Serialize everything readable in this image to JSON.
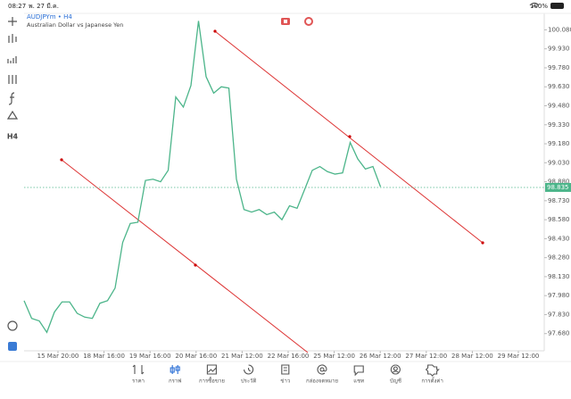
{
  "status_bar": {
    "time": "08:27",
    "date": "พ. 27 มี.ค.",
    "battery": "100%"
  },
  "header": {
    "symbol": "AUDJPYm • H4",
    "description": "Australian Dollar vs Japanese Yen"
  },
  "toolbar": {
    "timeframe": "H4"
  },
  "chart_data": {
    "type": "line",
    "color": "#4cb58a",
    "values": [
      97.94,
      97.8,
      97.78,
      97.69,
      97.85,
      97.93,
      97.93,
      97.84,
      97.81,
      97.8,
      97.92,
      97.94,
      98.04,
      98.4,
      98.55,
      98.56,
      98.89,
      98.9,
      98.88,
      98.97,
      99.55,
      99.47,
      99.64,
      100.15,
      99.71,
      99.58,
      99.63,
      99.62,
      98.9,
      98.66,
      98.64,
      98.66,
      98.62,
      98.64,
      98.58,
      98.69,
      98.67,
      98.82,
      98.97,
      99.0,
      98.96,
      98.94,
      98.95,
      99.19,
      99.06,
      98.98,
      99.0,
      98.84
    ],
    "current_price": 98.835,
    "ylim": [
      97.53,
      100.21
    ],
    "yticks": [
      {
        "value": 100.08,
        "label": "100.080"
      },
      {
        "value": 99.93,
        "label": "99.930"
      },
      {
        "value": 99.78,
        "label": "99.780"
      },
      {
        "value": 99.63,
        "label": "99.630"
      },
      {
        "value": 99.48,
        "label": "99.480"
      },
      {
        "value": 99.33,
        "label": "99.330"
      },
      {
        "value": 99.18,
        "label": "99.180"
      },
      {
        "value": 99.03,
        "label": "99.030"
      },
      {
        "value": 98.88,
        "label": "98.880"
      },
      {
        "value": 98.73,
        "label": "98.730"
      },
      {
        "value": 98.58,
        "label": "98.580"
      },
      {
        "value": 98.43,
        "label": "98.430"
      },
      {
        "value": 98.28,
        "label": "98.280"
      },
      {
        "value": 98.13,
        "label": "98.130"
      },
      {
        "value": 97.98,
        "label": "97.980"
      },
      {
        "value": 97.83,
        "label": "97.830"
      },
      {
        "value": 97.68,
        "label": "97.680"
      }
    ],
    "x_labels": [
      "15 Mar 20:00",
      "18 Mar 16:00",
      "19 Mar 16:00",
      "20 Mar 16:00",
      "21 Mar 12:00",
      "22 Mar 16:00",
      "25 Mar 12:00",
      "26 Mar 12:00",
      "27 Mar 12:00",
      "28 Mar 12:00",
      "29 Mar 12:00"
    ]
  },
  "tabs": [
    "ราคา",
    "กราฟ",
    "การซื้อขาย",
    "ประวัติ",
    "ข่าว",
    "กล่องจดหมาย",
    "แชท",
    "บัญชี",
    "การตั้งค่า"
  ],
  "active_tab": 1
}
